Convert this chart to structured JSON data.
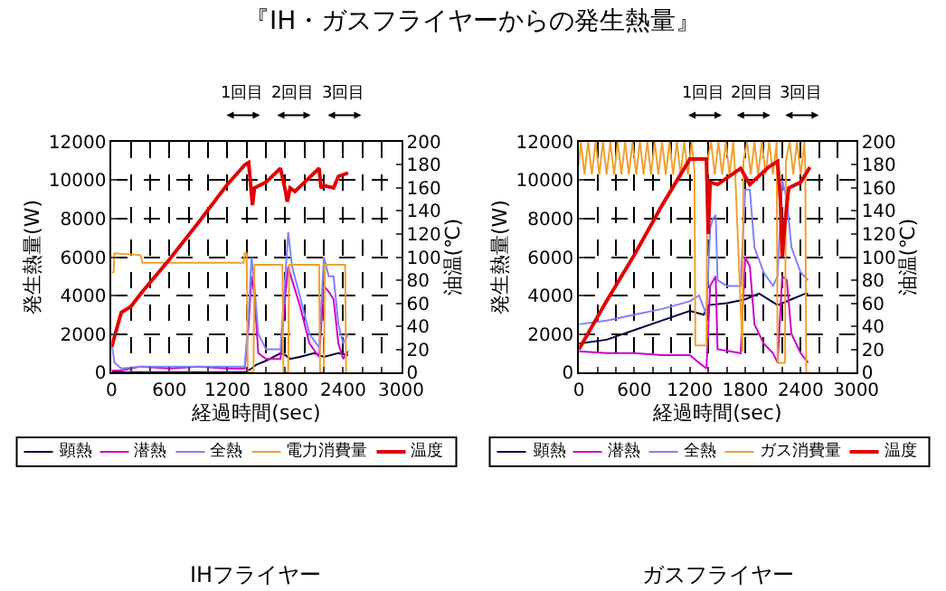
{
  "chart_data": [
    {
      "type": "line",
      "title": "IHフライヤー",
      "xlabel": "経過時間(sec)",
      "ylabel": "発生熱量(W)",
      "y2label": "油温(℃)",
      "annotations": [
        "『IH・ガスフライヤーからの発生熱量』",
        "1回目",
        "2回目",
        "3回目"
      ],
      "xlim": [
        0,
        3000
      ],
      "xticks": [
        0,
        {
          "value": 200,
          "label": null
        },
        {
          "value": 400,
          "label": null
        },
        600,
        {
          "value": 800,
          "label": null
        },
        {
          "value": 1000,
          "label": null
        },
        1200,
        {
          "value": 1400,
          "label": null
        },
        {
          "value": 1600,
          "label": null
        },
        1800,
        {
          "value": 2000,
          "label": null
        },
        {
          "value": 2200,
          "label": null
        },
        2400,
        {
          "value": 2600,
          "label": null
        },
        {
          "value": 2800,
          "label": null
        },
        3000
      ],
      "ylim": [
        0,
        12000
      ],
      "yticks": [
        0,
        2000,
        4000,
        6000,
        8000,
        10000,
        12000
      ],
      "y2lim": [
        0,
        200
      ],
      "y2ticks": [
        0,
        20,
        40,
        60,
        80,
        100,
        120,
        140,
        160,
        180,
        200
      ],
      "grid": true,
      "legend": "bottom",
      "marker": "none",
      "line_style": "solid",
      "series": [
        {
          "name": "顕熱",
          "color": "#000040",
          "x": [
            0,
            200,
            600,
            1000,
            1380,
            1450,
            1500,
            1600,
            1750,
            1800,
            1850,
            1950,
            2100,
            2200,
            2350,
            2450
          ],
          "values": [
            0,
            0,
            0,
            0,
            0,
            200,
            400,
            600,
            1000,
            900,
            700,
            800,
            1000,
            800,
            1000,
            900
          ]
        },
        {
          "name": "潜熱",
          "color": "#cc00cc",
          "x": [
            0,
            100,
            300,
            600,
            900,
            1200,
            1380,
            1420,
            1450,
            1480,
            1520,
            1600,
            1750,
            1800,
            1830,
            1870,
            1950,
            2050,
            2150,
            2200,
            2250,
            2300,
            2350,
            2400,
            2450
          ],
          "values": [
            100,
            100,
            300,
            200,
            300,
            200,
            200,
            2500,
            5000,
            4000,
            1000,
            700,
            700,
            4000,
            5500,
            4800,
            3500,
            1500,
            800,
            4500,
            4200,
            3800,
            1500,
            700,
            1100
          ]
        },
        {
          "name": "全熱",
          "color": "#8080ff",
          "x": [
            0,
            30,
            100,
            300,
            600,
            900,
            1200,
            1380,
            1420,
            1450,
            1480,
            1520,
            1600,
            1750,
            1800,
            1830,
            1870,
            1950,
            2050,
            2150,
            2200,
            2250,
            2300,
            2350,
            2400,
            2450
          ],
          "values": [
            1500,
            500,
            200,
            300,
            300,
            300,
            300,
            300,
            3000,
            6000,
            4500,
            2000,
            1200,
            1200,
            5000,
            7300,
            5500,
            4000,
            2000,
            1300,
            6000,
            5000,
            5000,
            2500,
            1500,
            2000
          ]
        },
        {
          "name": "電力消費量",
          "color": "#f0a030",
          "x": [
            0,
            20,
            30,
            300,
            320,
            1370,
            1380,
            1400,
            1410,
            1470,
            1480,
            1770,
            1780,
            1830,
            1840,
            2150,
            2160,
            2200,
            2210,
            2420,
            2430
          ],
          "values": [
            5200,
            5200,
            6200,
            6100,
            5700,
            5700,
            6200,
            6200,
            0,
            0,
            5600,
            5600,
            0,
            0,
            5600,
            5600,
            0,
            0,
            5600,
            5600,
            0
          ]
        },
        {
          "name": "温度",
          "color": "#e00000",
          "axis": "y2",
          "x": [
            0,
            60,
            100,
            200,
            300,
            600,
            900,
            1200,
            1380,
            1420,
            1460,
            1480,
            1600,
            1750,
            1800,
            1820,
            1850,
            1900,
            2000,
            2150,
            2170,
            2200,
            2300,
            2350,
            2450
          ],
          "values": [
            22,
            40,
            52,
            57,
            68,
            98,
            130,
            163,
            180,
            182,
            145,
            160,
            165,
            177,
            158,
            148,
            160,
            157,
            165,
            177,
            160,
            162,
            160,
            170,
            173
          ]
        }
      ]
    },
    {
      "type": "line",
      "title": "ガスフライヤー",
      "xlabel": "経過時間(sec)",
      "ylabel": "発生熱量(W)",
      "y2label": "油温(℃)",
      "annotations": [
        "1回目",
        "2回目",
        "3回目"
      ],
      "xlim": [
        0,
        3000
      ],
      "xticks": [
        0,
        {
          "value": 200,
          "label": null
        },
        {
          "value": 400,
          "label": null
        },
        600,
        {
          "value": 800,
          "label": null
        },
        {
          "value": 1000,
          "label": null
        },
        1200,
        {
          "value": 1400,
          "label": null
        },
        {
          "value": 1600,
          "label": null
        },
        1800,
        {
          "value": 2000,
          "label": null
        },
        {
          "value": 2200,
          "label": null
        },
        2400,
        {
          "value": 2600,
          "label": null
        },
        {
          "value": 2800,
          "label": null
        },
        3000
      ],
      "ylim": [
        0,
        12000
      ],
      "yticks": [
        0,
        2000,
        4000,
        6000,
        8000,
        10000,
        12000
      ],
      "y2lim": [
        0,
        200
      ],
      "y2ticks": [
        0,
        20,
        40,
        60,
        80,
        100,
        120,
        140,
        160,
        180,
        200
      ],
      "grid": true,
      "legend": "bottom",
      "marker": "none",
      "line_style": "solid",
      "series": [
        {
          "name": "顕熱",
          "color": "#000040",
          "x": [
            0,
            300,
            600,
            900,
            1200,
            1350,
            1400,
            1600,
            1800,
            1950,
            2150,
            2300,
            2450,
            2480
          ],
          "values": [
            1500,
            1700,
            2200,
            2700,
            3200,
            3000,
            3500,
            3600,
            3800,
            4100,
            3500,
            3800,
            4100,
            4100
          ]
        },
        {
          "name": "潜熱",
          "color": "#cc00cc",
          "x": [
            0,
            300,
            600,
            900,
            1200,
            1300,
            1380,
            1420,
            1480,
            1500,
            1750,
            1800,
            1850,
            1900,
            2000,
            2100,
            2150,
            2200,
            2250,
            2300,
            2400,
            2480
          ],
          "values": [
            1100,
            1000,
            1000,
            900,
            900,
            500,
            200,
            4500,
            5000,
            1200,
            1000,
            6000,
            5500,
            2500,
            1500,
            1000,
            500,
            5000,
            4800,
            2000,
            1000,
            500
          ]
        },
        {
          "name": "全熱",
          "color": "#8080ff",
          "x": [
            0,
            300,
            600,
            900,
            1200,
            1300,
            1380,
            1420,
            1450,
            1480,
            1500,
            1600,
            1750,
            1800,
            1850,
            1900,
            2000,
            2100,
            2150,
            2200,
            2250,
            2300,
            2400,
            2480
          ],
          "values": [
            2500,
            2700,
            3000,
            3300,
            3700,
            4000,
            3000,
            7500,
            8000,
            8200,
            4800,
            4500,
            4500,
            9500,
            9500,
            6500,
            5200,
            4500,
            5000,
            10000,
            9000,
            6500,
            5200,
            4800
          ]
        },
        {
          "name": "ガス消費量",
          "color": "#f0a030",
          "x": [
            0,
            20,
            60,
            100,
            140,
            180,
            220,
            260,
            300,
            340,
            380,
            420,
            460,
            500,
            540,
            580,
            620,
            660,
            700,
            740,
            780,
            820,
            860,
            900,
            940,
            980,
            1020,
            1060,
            1100,
            1140,
            1180,
            1220,
            1250,
            1260,
            1380,
            1390,
            1430,
            1470,
            1510,
            1550,
            1590,
            1630,
            1670,
            1690,
            1770,
            1780,
            1820,
            1860,
            1900,
            1940,
            1980,
            2020,
            2060,
            2100,
            2140,
            2150,
            2230,
            2240,
            2280,
            2320,
            2360,
            2400,
            2440,
            2450,
            2460
          ],
          "values": [
            10800,
            12000,
            10300,
            12000,
            10300,
            12000,
            10300,
            12000,
            10300,
            12000,
            10300,
            12000,
            10300,
            12000,
            10300,
            12000,
            10300,
            12000,
            10300,
            12000,
            10300,
            12000,
            10300,
            12000,
            10300,
            12000,
            10300,
            12000,
            10300,
            12000,
            10300,
            12000,
            10500,
            1400,
            1400,
            11000,
            12000,
            10300,
            12000,
            10300,
            12000,
            10300,
            12000,
            10500,
            1100,
            11000,
            12000,
            10300,
            12000,
            10300,
            12000,
            10300,
            12000,
            10300,
            12000,
            500,
            500,
            11000,
            12000,
            10300,
            12000,
            10300,
            12000,
            10500,
            0
          ]
        },
        {
          "name": "温度",
          "color": "#e00000",
          "axis": "y2",
          "x": [
            0,
            300,
            600,
            900,
            1200,
            1380,
            1400,
            1420,
            1500,
            1750,
            1800,
            1850,
            2050,
            2150,
            2180,
            2200,
            2230,
            2270,
            2400,
            2500
          ],
          "values": [
            20,
            62,
            102,
            145,
            185,
            185,
            120,
            165,
            163,
            177,
            170,
            163,
            178,
            183,
            150,
            100,
            130,
            160,
            165,
            178
          ]
        }
      ]
    }
  ]
}
